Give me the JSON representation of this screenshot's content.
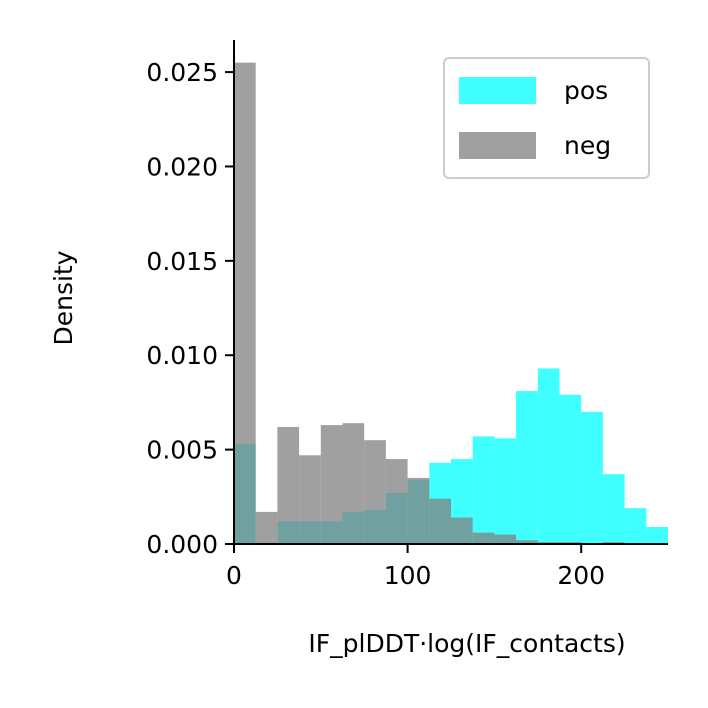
{
  "chart_data": {
    "type": "histogram",
    "title": "",
    "xlabel": "IF_plDDT·log(IF_contacts)",
    "ylabel": "Density",
    "xlim": [
      0,
      250
    ],
    "ylim": [
      0,
      0.0267
    ],
    "xticks": [
      0,
      100,
      200
    ],
    "xtick_labels": [
      "0",
      "100",
      "200"
    ],
    "yticks": [
      0,
      0.005,
      0.01,
      0.015,
      0.02,
      0.025
    ],
    "ytick_labels": [
      "0.000",
      "0.005",
      "0.010",
      "0.015",
      "0.020",
      "0.025"
    ],
    "grid": false,
    "legend": {
      "position": "top-right"
    },
    "series": [
      {
        "name": "pos",
        "color": "#00ffff",
        "opacity": 0.75,
        "bin_edges": [
          0,
          12.5,
          25,
          37.5,
          50,
          62.5,
          75,
          87.5,
          100,
          112.5,
          125,
          137.5,
          150,
          162.5,
          175,
          187.5,
          200,
          212.5,
          225,
          237.5,
          250
        ],
        "values": [
          0.0053,
          0.0,
          0.0012,
          0.0012,
          0.0012,
          0.0017,
          0.0018,
          0.0027,
          0.0034,
          0.0043,
          0.0045,
          0.0057,
          0.0056,
          0.0081,
          0.0093,
          0.0079,
          0.007,
          0.0037,
          0.0019,
          0.0009
        ]
      },
      {
        "name": "neg",
        "color": "#808080",
        "opacity": 0.75,
        "bin_edges": [
          0,
          12.5,
          25,
          37.5,
          50,
          62.5,
          75,
          87.5,
          100,
          112.5,
          125,
          137.5,
          150,
          162.5,
          175,
          187.5,
          200,
          212.5,
          225,
          237.5,
          250
        ],
        "values": [
          0.0255,
          0.0017,
          0.0062,
          0.0047,
          0.0063,
          0.0064,
          0.0055,
          0.0045,
          0.0035,
          0.0024,
          0.0014,
          0.0006,
          0.0005,
          0.0002,
          0.0001,
          0.0001,
          0.0,
          0.0001,
          0.0,
          0.0
        ]
      }
    ]
  }
}
